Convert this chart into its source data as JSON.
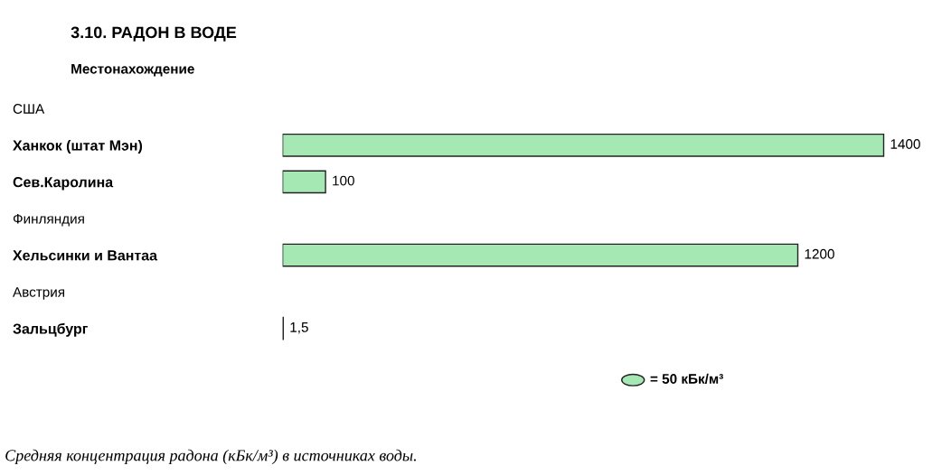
{
  "chart_data": {
    "type": "bar",
    "orientation": "horizontal",
    "title": "3.10. РАДОН В ВОДЕ",
    "subtitle": "Местонахождение",
    "categories": [
      "США",
      "Ханкок (штат Мэн)",
      "Сев.Каролина",
      "Финляндия",
      "Хельсинки и Вантаа",
      "Австрия",
      "Зальцбург"
    ],
    "values": [
      null,
      1400,
      100,
      null,
      1200,
      null,
      1.5
    ],
    "value_labels": [
      null,
      "1400",
      "100",
      null,
      "1200",
      null,
      "1,5"
    ],
    "color": "#a6e8b4",
    "grid": false,
    "legend": false,
    "annotations": [
      "= 50 кБк/м³",
      "Средняя концентрация радона (кБк/м³) в источниках воды."
    ]
  }
}
